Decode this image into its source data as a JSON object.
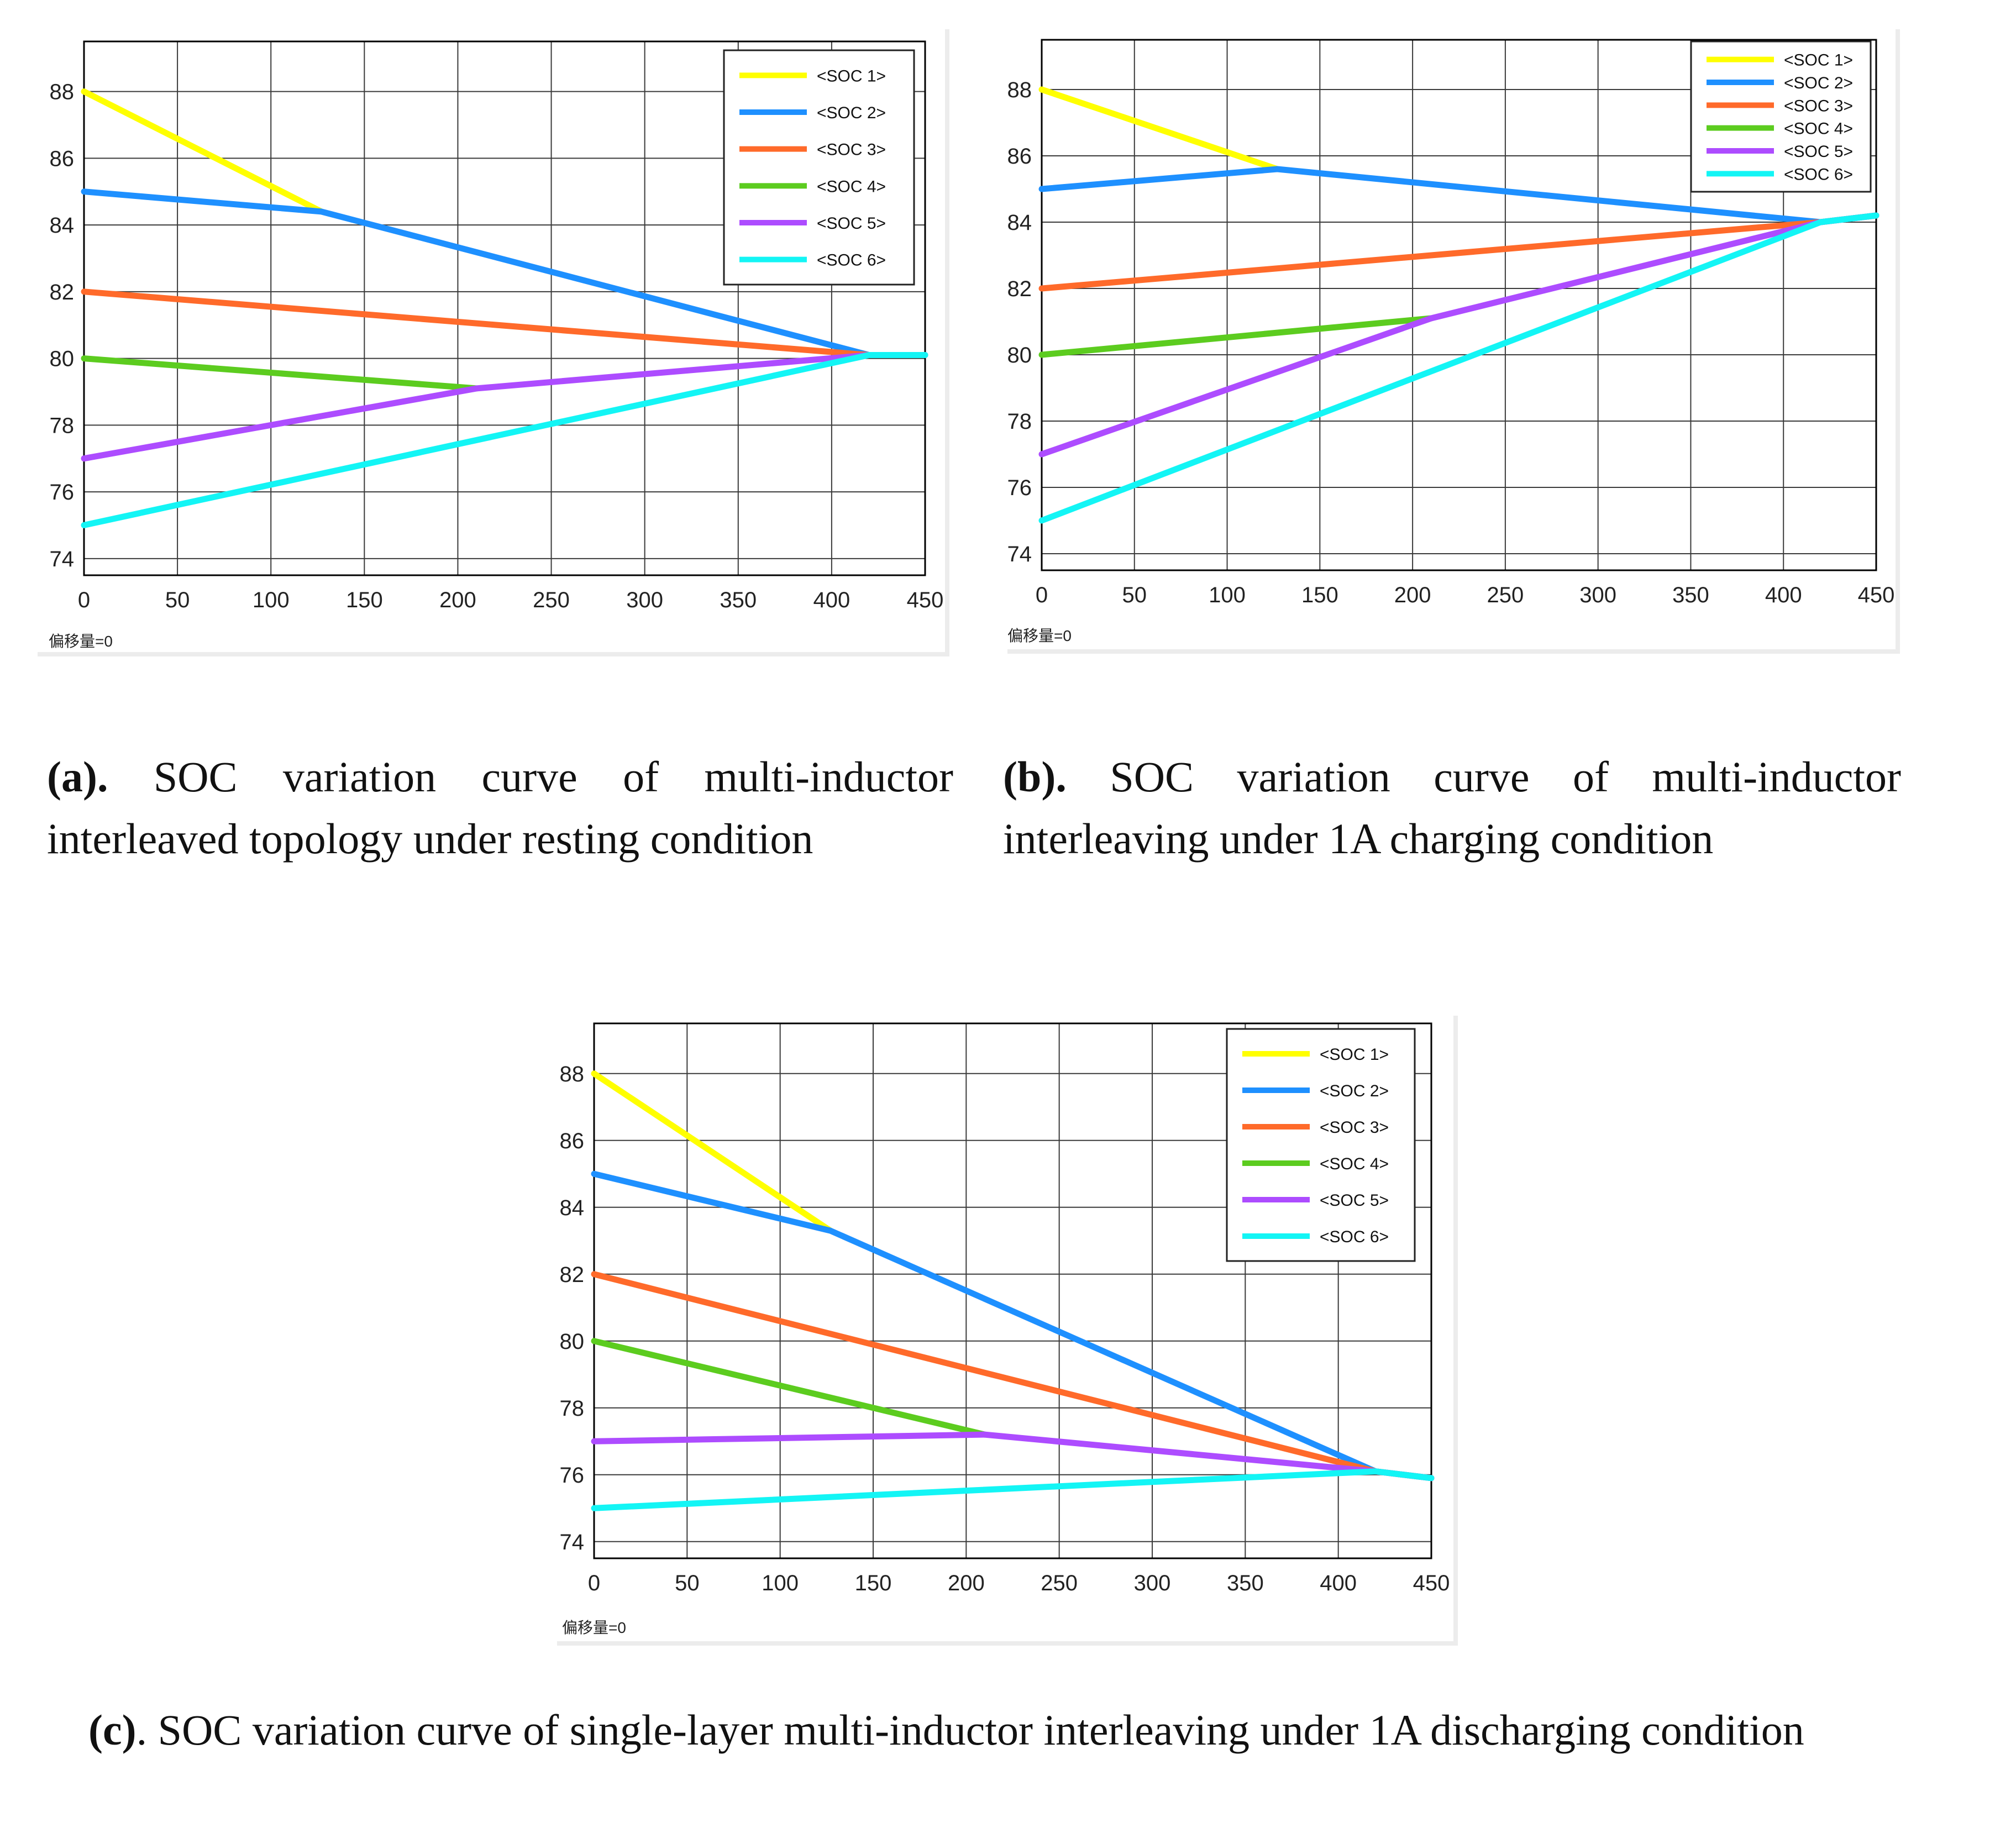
{
  "colors": {
    "SOC 1": "#ffff00",
    "SOC 2": "#1e90ff",
    "SOC 3": "#ff6a2a",
    "SOC 4": "#5ccc1f",
    "SOC 5": "#ad4cff",
    "SOC 6": "#13f5f5",
    "grid": "#3a3a3a",
    "axis": "#000000"
  },
  "captions": {
    "a": {
      "label": "(a).",
      "text": " SOC variation curve of multi-inductor interleaved topology under resting condition"
    },
    "b": {
      "label": "(b).",
      "text": " SOC variation curve of multi-inductor interleaving under 1A charging condition"
    },
    "c": {
      "label": "(c)",
      "text": ". SOC variation curve of single-layer multi-inductor interleaving under 1A discharging condition"
    }
  },
  "chart_data": [
    {
      "id": "a",
      "type": "line",
      "offset_label": "偏移量=0",
      "xlim": [
        0,
        450
      ],
      "ylim": [
        73.5,
        89.5
      ],
      "xticks": [
        0,
        50,
        100,
        150,
        200,
        250,
        300,
        350,
        400,
        450
      ],
      "yticks": [
        74,
        76,
        78,
        80,
        82,
        84,
        86,
        88
      ],
      "grid": true,
      "legend_position": "top-right",
      "series": [
        {
          "name": "<SOC 1>",
          "x": [
            0,
            127
          ],
          "y": [
            88,
            84.4
          ]
        },
        {
          "name": "<SOC 2>",
          "x": [
            0,
            127,
            420,
            450
          ],
          "y": [
            85,
            84.4,
            80.1,
            80.1
          ]
        },
        {
          "name": "<SOC 3>",
          "x": [
            0,
            420,
            450
          ],
          "y": [
            82,
            80.1,
            80.1
          ]
        },
        {
          "name": "<SOC 4>",
          "x": [
            0,
            210
          ],
          "y": [
            80,
            79.1
          ]
        },
        {
          "name": "<SOC 5>",
          "x": [
            0,
            210,
            420,
            450
          ],
          "y": [
            77,
            79.1,
            80.1,
            80.1
          ]
        },
        {
          "name": "<SOC 6>",
          "x": [
            0,
            420,
            450
          ],
          "y": [
            75,
            80.1,
            80.1
          ]
        }
      ]
    },
    {
      "id": "b",
      "type": "line",
      "offset_label": "偏移量=0",
      "xlim": [
        0,
        450
      ],
      "ylim": [
        73.5,
        89.5
      ],
      "xticks": [
        0,
        50,
        100,
        150,
        200,
        250,
        300,
        350,
        400,
        450
      ],
      "yticks": [
        74,
        76,
        78,
        80,
        82,
        84,
        86,
        88
      ],
      "grid": true,
      "legend_position": "top-right",
      "series": [
        {
          "name": "<SOC 1>",
          "x": [
            0,
            127
          ],
          "y": [
            88,
            85.6
          ]
        },
        {
          "name": "<SOC 2>",
          "x": [
            0,
            127,
            420,
            450
          ],
          "y": [
            85,
            85.6,
            84,
            84.2
          ]
        },
        {
          "name": "<SOC 3>",
          "x": [
            0,
            420,
            450
          ],
          "y": [
            82,
            84,
            84.2
          ]
        },
        {
          "name": "<SOC 4>",
          "x": [
            0,
            210
          ],
          "y": [
            80,
            81.1
          ]
        },
        {
          "name": "<SOC 5>",
          "x": [
            0,
            210,
            420,
            450
          ],
          "y": [
            77,
            81.1,
            84,
            84.2
          ]
        },
        {
          "name": "<SOC 6>",
          "x": [
            0,
            420,
            450
          ],
          "y": [
            75,
            84,
            84.2
          ]
        }
      ]
    },
    {
      "id": "c",
      "type": "line",
      "offset_label": "偏移量=0",
      "xlim": [
        0,
        450
      ],
      "ylim": [
        73.5,
        89.5
      ],
      "xticks": [
        0,
        50,
        100,
        150,
        200,
        250,
        300,
        350,
        400,
        450
      ],
      "yticks": [
        74,
        76,
        78,
        80,
        82,
        84,
        86,
        88
      ],
      "grid": true,
      "legend_position": "top-right",
      "series": [
        {
          "name": "<SOC 1>",
          "x": [
            0,
            127
          ],
          "y": [
            88,
            83.3
          ]
        },
        {
          "name": "<SOC 2>",
          "x": [
            0,
            127,
            420,
            450
          ],
          "y": [
            85,
            83.3,
            76.1,
            75.9
          ]
        },
        {
          "name": "<SOC 3>",
          "x": [
            0,
            420,
            450
          ],
          "y": [
            82,
            76.1,
            75.9
          ]
        },
        {
          "name": "<SOC 4>",
          "x": [
            0,
            210
          ],
          "y": [
            80,
            77.2
          ]
        },
        {
          "name": "<SOC 5>",
          "x": [
            0,
            210,
            420,
            450
          ],
          "y": [
            77,
            77.2,
            76.1,
            75.9
          ]
        },
        {
          "name": "<SOC 6>",
          "x": [
            0,
            420,
            450
          ],
          "y": [
            75,
            76.1,
            75.9
          ]
        }
      ]
    }
  ]
}
